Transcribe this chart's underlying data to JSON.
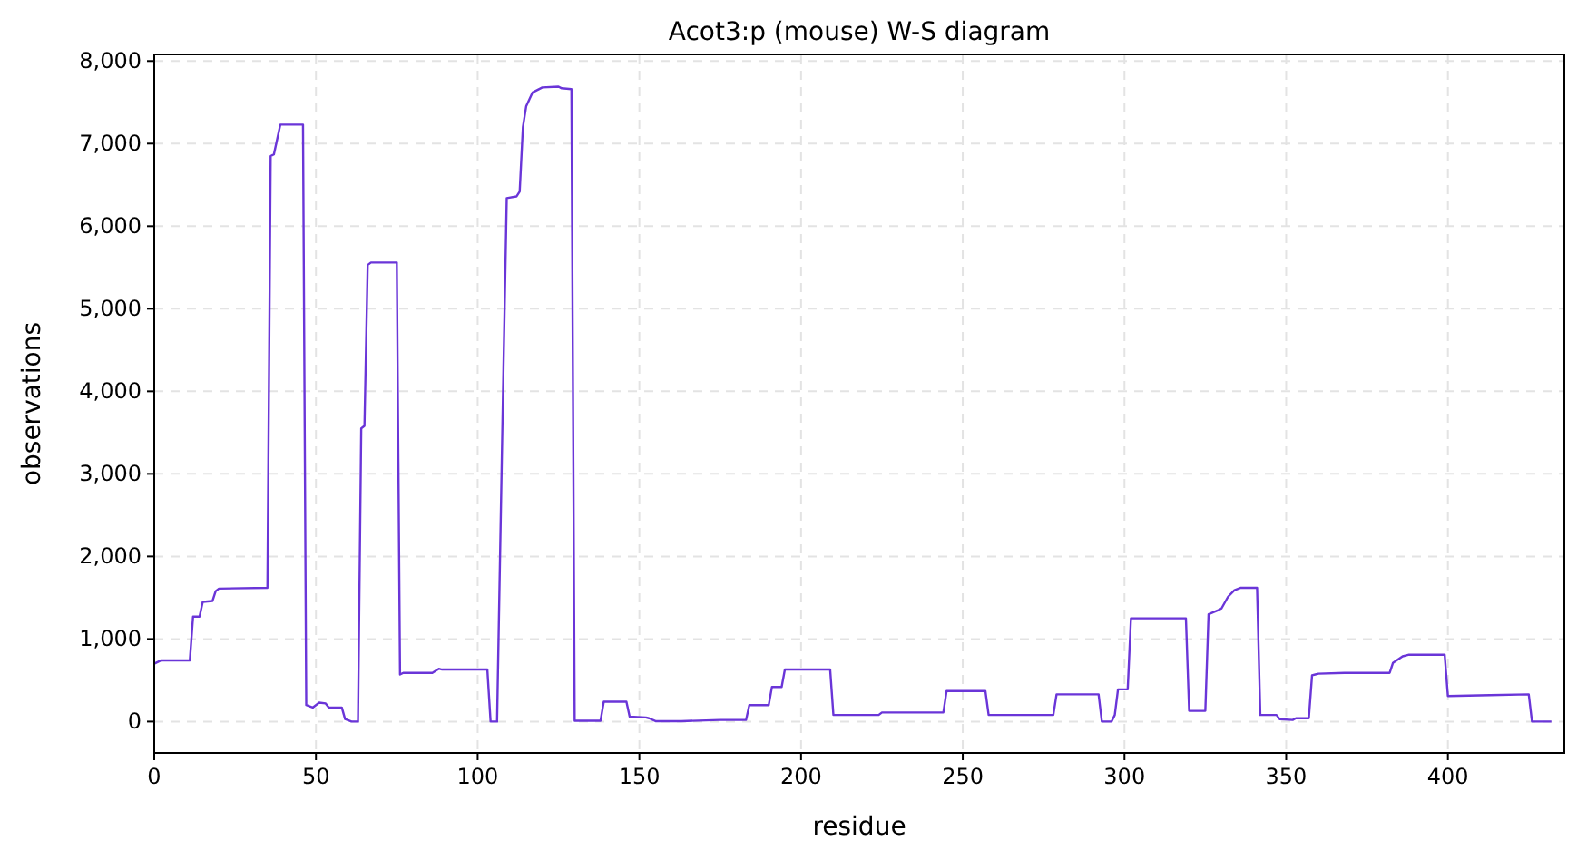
{
  "chart_data": {
    "type": "line",
    "title": "Acot3:p (mouse) W-S diagram",
    "xlabel": "residue",
    "ylabel": "observations",
    "xlim": [
      0,
      436
    ],
    "ylim": [
      -380,
      8080
    ],
    "xticks": [
      0,
      50,
      100,
      150,
      200,
      250,
      300,
      350,
      400
    ],
    "yticks": [
      {
        "value": 0,
        "label": "0"
      },
      {
        "value": 1000,
        "label": "1,000"
      },
      {
        "value": 2000,
        "label": "2,000"
      },
      {
        "value": 3000,
        "label": "3,000"
      },
      {
        "value": 4000,
        "label": "4,000"
      },
      {
        "value": 5000,
        "label": "5,000"
      },
      {
        "value": 6000,
        "label": "6,000"
      },
      {
        "value": 7000,
        "label": "7,000"
      },
      {
        "value": 8000,
        "label": "8,000"
      }
    ],
    "grid": true,
    "line_style": "solid",
    "marker": "none",
    "series": [
      {
        "color": "#6a35d8",
        "x": [
          0,
          2,
          11,
          12,
          14,
          15,
          18,
          19,
          20,
          35,
          36,
          37,
          39,
          46,
          47,
          49,
          51,
          53,
          54,
          58,
          59,
          61,
          63,
          64,
          65,
          66,
          67,
          75,
          76,
          77,
          86,
          88,
          89,
          103,
          104,
          106,
          108,
          109,
          112,
          113,
          114,
          115,
          117,
          120,
          125,
          126,
          129,
          130,
          135,
          138,
          139,
          146,
          147,
          152,
          153,
          155,
          163,
          175,
          183,
          184,
          190,
          191,
          194,
          195,
          209,
          210,
          224,
          225,
          244,
          245,
          257,
          258,
          278,
          279,
          292,
          293,
          296,
          297,
          298,
          301,
          302,
          319,
          320,
          325,
          326,
          329,
          330,
          332,
          334,
          336,
          341,
          342,
          347,
          348,
          352,
          353,
          357,
          358,
          359,
          360,
          368,
          382,
          383,
          386,
          388,
          399,
          400,
          413,
          425,
          426,
          432
        ],
        "values": [
          700,
          740,
          740,
          1270,
          1270,
          1450,
          1460,
          1580,
          1610,
          1620,
          6850,
          6870,
          7230,
          7230,
          200,
          170,
          230,
          220,
          170,
          170,
          30,
          0,
          0,
          3550,
          3580,
          5530,
          5560,
          5560,
          570,
          590,
          590,
          640,
          630,
          630,
          0,
          0,
          4300,
          6340,
          6360,
          6420,
          7200,
          7450,
          7620,
          7680,
          7690,
          7670,
          7660,
          10,
          10,
          10,
          240,
          240,
          60,
          50,
          40,
          5,
          5,
          20,
          20,
          200,
          200,
          420,
          420,
          630,
          630,
          80,
          80,
          110,
          110,
          370,
          370,
          80,
          80,
          330,
          330,
          0,
          0,
          80,
          390,
          390,
          1250,
          1250,
          130,
          130,
          1300,
          1350,
          1370,
          1510,
          1590,
          1620,
          1620,
          80,
          80,
          30,
          20,
          40,
          40,
          560,
          570,
          580,
          590,
          590,
          710,
          790,
          810,
          810,
          310,
          320,
          330,
          0,
          0
        ]
      }
    ]
  }
}
